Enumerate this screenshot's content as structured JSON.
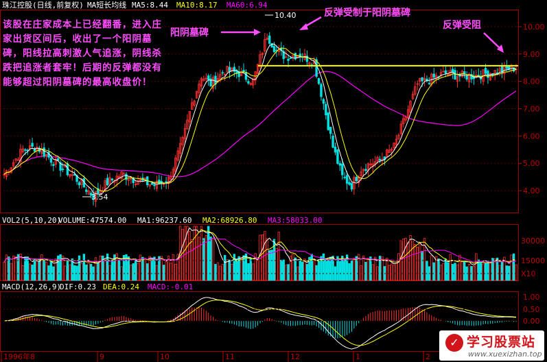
{
  "chart_data": [
    {
      "type": "candlestick",
      "header": {
        "name": "珠江控股(日线,前复权)",
        "ma_label": "MA短长均线",
        "ma5": "MA5:8.44",
        "ma10": "MA10:8.17",
        "ma60": "MA60:6.94"
      },
      "y_ticks": [
        "10.00",
        "9.00",
        "8.00",
        "7.00",
        "6.00",
        "5.00",
        "4.00"
      ],
      "ylim": [
        3.2,
        10.6
      ],
      "high_label": "10.40",
      "low_label": "3.54",
      "resistance_level": 8.57,
      "annotations": {
        "left_text": "该股在庄家成本上已经翻番，进入庄家出货区间后，收出了一个阳阴墓碑，阳线拉高刺激人气追涨，阴线杀跌把追涨者套牢！后期的反弹都没有能够超过阳阴墓碑的最高收盘价！",
        "tombstone": "阳阴墓碑",
        "rebound_limited": "反弹受制于阳阴墓碑",
        "rebound_blocked": "反弹受阻"
      },
      "colors": {
        "up": "#ff3030",
        "down": "#00e0e0",
        "ma5": "#ffffff",
        "ma10": "#ffff00",
        "ma60": "#ff00ff",
        "resistance": "#ffff00",
        "annotation": "#ff4dff"
      }
    },
    {
      "type": "bar",
      "header": {
        "vol": "VOL2(5,10,20)",
        "volume": "VOLUME:47574.00",
        "ma1": "MA1:96237.60",
        "ma2": "MA2:68926.80",
        "ma3": "MA3:58033.00"
      },
      "y_ticks": [
        "30000",
        "15000",
        "X10"
      ]
    },
    {
      "type": "bar",
      "header": {
        "macd": "MACD(12,26,9)",
        "dif": "DIF:0.23",
        "dea": "DEA:0.24",
        "macd_val": "MACD:-0.01"
      },
      "y_ticks": [
        "1.00",
        "0.50",
        "0.00"
      ]
    }
  ],
  "x_axis": {
    "labels": [
      "1996年8",
      "9",
      "10",
      "11",
      "12",
      "1",
      "2"
    ]
  },
  "watermark": {
    "name": "学习股票站",
    "url": "www.xuexizhan.top"
  }
}
